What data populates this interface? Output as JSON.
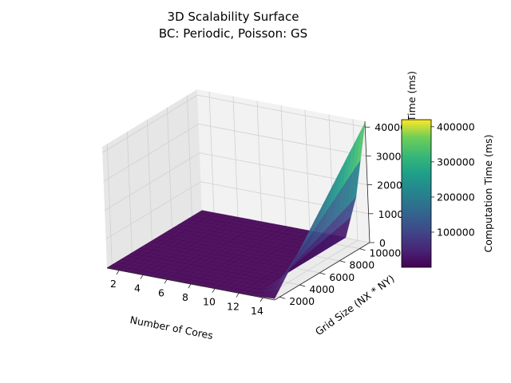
{
  "chart_data": {
    "type": "surface",
    "title": "3D Scalability Surface",
    "subtitle": "BC: Periodic, Poisson: GS",
    "xlabel": "Number of Cores",
    "ylabel": "Grid Size (NX * NY)",
    "zlabel": "Computation Time (ms)",
    "xlim": [
      1,
      15
    ],
    "ylim": [
      1500,
      11000
    ],
    "zlim": [
      0,
      420000
    ],
    "x_ticks": [
      2,
      4,
      6,
      8,
      10,
      12,
      14
    ],
    "y_ticks": [
      2000,
      4000,
      6000,
      8000,
      10000
    ],
    "z_ticks": [
      0,
      100000,
      200000,
      300000,
      400000
    ],
    "z_tick_labels": [
      "0",
      "100000",
      "200000",
      "300000",
      "400000"
    ],
    "colormap": "viridis",
    "colorbar_label": "Computation Time (ms)",
    "colorbar_range": [
      0,
      420000
    ],
    "colorbar_ticks": [
      100000,
      200000,
      300000,
      400000
    ],
    "surface_grid": {
      "cores": [
        1,
        13,
        14,
        15
      ],
      "grid_sizes": [
        1500,
        11000
      ],
      "time_ms": [
        [
          1000,
          1000
        ],
        [
          1000,
          2000
        ],
        [
          2000,
          150000
        ],
        [
          5000,
          415000
        ]
      ]
    },
    "grid": true
  },
  "colors": {
    "pane_back": "#f2f2f2",
    "pane_side": "#e6e6e6",
    "pane_floor": "#ebebeb",
    "grid_line": "#d0d0d0"
  }
}
